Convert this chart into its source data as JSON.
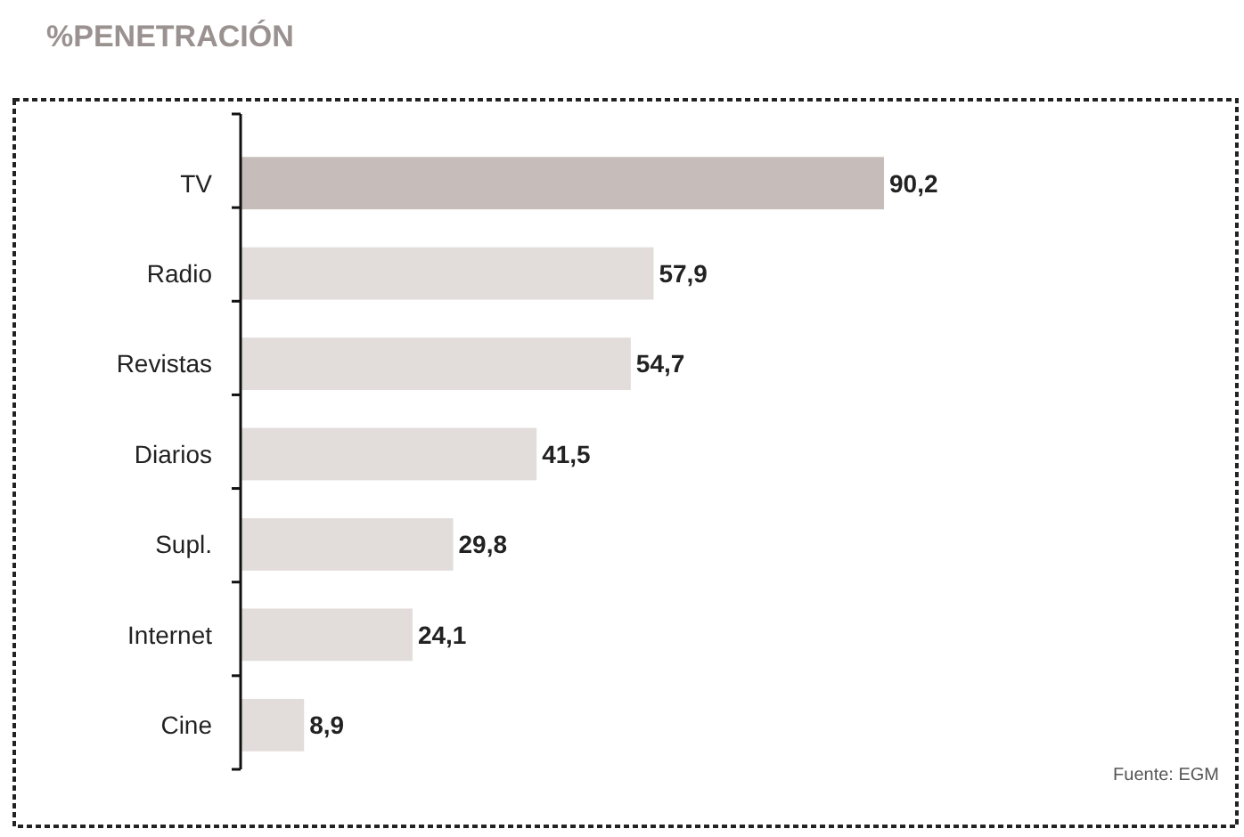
{
  "chart_data": {
    "type": "bar",
    "orientation": "horizontal",
    "title": "%PENETRACIÓN",
    "categories": [
      "TV",
      "Radio",
      "Revistas",
      "Diarios",
      "Supl.",
      "Internet",
      "Cine"
    ],
    "values": [
      90.2,
      57.9,
      54.7,
      41.5,
      29.8,
      24.1,
      8.9
    ],
    "colors": [
      "#c6bcb9",
      "#e2dddb",
      "#e2dddb",
      "#e2dddb",
      "#e2dddb",
      "#e2dddb",
      "#e2dddb"
    ],
    "value_labels": [
      "90,2",
      "57,9",
      "54,7",
      "41,5",
      "29,8",
      "24,1",
      "8,9"
    ],
    "annotations": [
      "Fuente: EGM"
    ]
  }
}
